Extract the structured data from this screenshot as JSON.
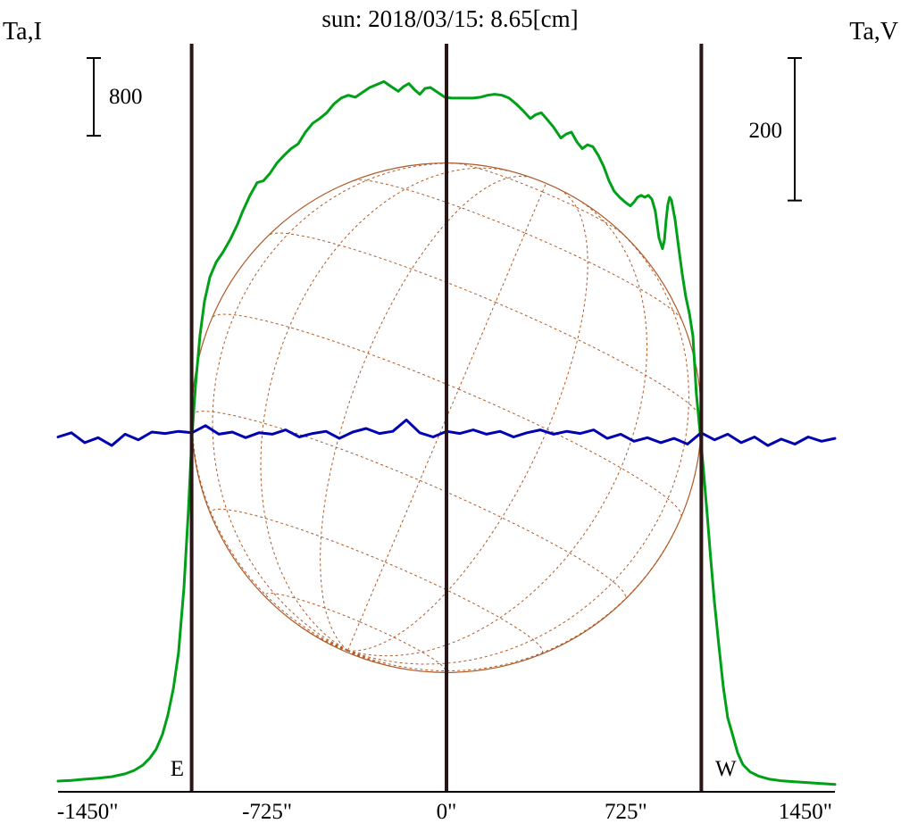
{
  "chart_data": {
    "type": "line",
    "title": "sun: 2018/03/15: 8.65[cm]",
    "title_color": "#000090",
    "x_unit": "arcsec",
    "xlim": [
      -1570,
      1570
    ],
    "x_ticks": [
      {
        "value": -1450,
        "label": "-1450\""
      },
      {
        "value": -725,
        "label": "-725\""
      },
      {
        "value": 0,
        "label": "0\""
      },
      {
        "value": 725,
        "label": "725\""
      },
      {
        "value": 1450,
        "label": "1450\""
      }
    ],
    "left_axis": {
      "label": "Ta,I",
      "ylim": [
        0,
        7700
      ],
      "scalebar": {
        "value": 800,
        "label": "800"
      }
    },
    "right_axis": {
      "label": "Ta,V",
      "ylim": [
        -500,
        550
      ],
      "scalebar": {
        "value": 200,
        "label": "200"
      }
    },
    "limb_markers": {
      "east": {
        "label": "E",
        "x_arcsec": -1030
      },
      "center_x_arcsec": 0,
      "west": {
        "label": "W",
        "x_arcsec": 1030
      },
      "line_color": "#2a1616"
    },
    "solar_disk": {
      "center_x_arcsec": 0,
      "radius_arcsec": 1030,
      "grid_step_deg": 22.5,
      "axis_tilt_deg": -23,
      "b_angle_deg": -7,
      "color": "#b05a28"
    },
    "series": [
      {
        "name": "Ta,I",
        "axis": "left",
        "color": "#00a018",
        "width": 3,
        "points": [
          [
            -1570,
            110
          ],
          [
            -1516,
            118
          ],
          [
            -1462,
            130
          ],
          [
            -1408,
            140
          ],
          [
            -1353,
            155
          ],
          [
            -1299,
            185
          ],
          [
            -1263,
            220
          ],
          [
            -1227,
            275
          ],
          [
            -1198,
            350
          ],
          [
            -1173,
            440
          ],
          [
            -1148,
            590
          ],
          [
            -1126,
            790
          ],
          [
            -1104,
            1060
          ],
          [
            -1083,
            1430
          ],
          [
            -1061,
            2100
          ],
          [
            -1043,
            2900
          ],
          [
            -1029,
            3650
          ],
          [
            -1014,
            4200
          ],
          [
            -996,
            4700
          ],
          [
            -978,
            5050
          ],
          [
            -956,
            5300
          ],
          [
            -931,
            5450
          ],
          [
            -902,
            5560
          ],
          [
            -873,
            5690
          ],
          [
            -845,
            5840
          ],
          [
            -823,
            5980
          ],
          [
            -794,
            6140
          ],
          [
            -765,
            6270
          ],
          [
            -740,
            6290
          ],
          [
            -715,
            6360
          ],
          [
            -686,
            6470
          ],
          [
            -657,
            6550
          ],
          [
            -628,
            6620
          ],
          [
            -599,
            6670
          ],
          [
            -570,
            6790
          ],
          [
            -541,
            6880
          ],
          [
            -513,
            6930
          ],
          [
            -484,
            6990
          ],
          [
            -455,
            7080
          ],
          [
            -426,
            7140
          ],
          [
            -397,
            7170
          ],
          [
            -368,
            7150
          ],
          [
            -339,
            7200
          ],
          [
            -310,
            7250
          ],
          [
            -282,
            7280
          ],
          [
            -253,
            7310
          ],
          [
            -224,
            7260
          ],
          [
            -195,
            7210
          ],
          [
            -173,
            7260
          ],
          [
            -152,
            7290
          ],
          [
            -130,
            7230
          ],
          [
            -108,
            7180
          ],
          [
            -87,
            7240
          ],
          [
            -65,
            7250
          ],
          [
            -36,
            7200
          ],
          [
            -7,
            7150
          ],
          [
            22,
            7140
          ],
          [
            51,
            7140
          ],
          [
            79,
            7140
          ],
          [
            108,
            7140
          ],
          [
            137,
            7150
          ],
          [
            166,
            7170
          ],
          [
            195,
            7180
          ],
          [
            224,
            7170
          ],
          [
            253,
            7140
          ],
          [
            282,
            7080
          ],
          [
            310,
            7010
          ],
          [
            339,
            6930
          ],
          [
            361,
            6970
          ],
          [
            383,
            6990
          ],
          [
            404,
            6930
          ],
          [
            433,
            6840
          ],
          [
            462,
            6730
          ],
          [
            484,
            6770
          ],
          [
            505,
            6790
          ],
          [
            527,
            6690
          ],
          [
            549,
            6620
          ],
          [
            570,
            6660
          ],
          [
            592,
            6640
          ],
          [
            614,
            6550
          ],
          [
            635,
            6440
          ],
          [
            657,
            6290
          ],
          [
            678,
            6180
          ],
          [
            700,
            6120
          ],
          [
            722,
            6070
          ],
          [
            743,
            6030
          ],
          [
            758,
            6070
          ],
          [
            772,
            6120
          ],
          [
            787,
            6140
          ],
          [
            801,
            6120
          ],
          [
            816,
            6140
          ],
          [
            830,
            6100
          ],
          [
            844,
            5980
          ],
          [
            859,
            5700
          ],
          [
            873,
            5590
          ],
          [
            881,
            5680
          ],
          [
            888,
            5890
          ],
          [
            895,
            6050
          ],
          [
            902,
            6120
          ],
          [
            909,
            6090
          ],
          [
            924,
            5890
          ],
          [
            938,
            5610
          ],
          [
            953,
            5330
          ],
          [
            967,
            5100
          ],
          [
            982,
            4920
          ],
          [
            996,
            4690
          ],
          [
            1010,
            4100
          ],
          [
            1025,
            3700
          ],
          [
            1039,
            3300
          ],
          [
            1054,
            2850
          ],
          [
            1068,
            2400
          ],
          [
            1083,
            1950
          ],
          [
            1101,
            1500
          ],
          [
            1119,
            1080
          ],
          [
            1137,
            760
          ],
          [
            1155,
            600
          ],
          [
            1177,
            400
          ],
          [
            1198,
            280
          ],
          [
            1227,
            205
          ],
          [
            1263,
            160
          ],
          [
            1306,
            130
          ],
          [
            1357,
            112
          ],
          [
            1408,
            103
          ],
          [
            1462,
            95
          ],
          [
            1516,
            85
          ],
          [
            1570,
            75
          ]
        ]
      },
      {
        "name": "Ta,V",
        "axis": "right",
        "color": "#0000b0",
        "width": 3,
        "points": [
          [
            -1570,
            -2
          ],
          [
            -1516,
            4
          ],
          [
            -1462,
            -10
          ],
          [
            -1408,
            -3
          ],
          [
            -1353,
            -14
          ],
          [
            -1299,
            2
          ],
          [
            -1245,
            -6
          ],
          [
            -1191,
            5
          ],
          [
            -1137,
            3
          ],
          [
            -1083,
            6
          ],
          [
            -1029,
            4
          ],
          [
            -974,
            14
          ],
          [
            -920,
            2
          ],
          [
            -866,
            5
          ],
          [
            -812,
            -3
          ],
          [
            -758,
            4
          ],
          [
            -704,
            2
          ],
          [
            -650,
            8
          ],
          [
            -595,
            -2
          ],
          [
            -541,
            3
          ],
          [
            -487,
            6
          ],
          [
            -433,
            -4
          ],
          [
            -379,
            5
          ],
          [
            -325,
            10
          ],
          [
            -271,
            3
          ],
          [
            -217,
            6
          ],
          [
            -162,
            22
          ],
          [
            -108,
            4
          ],
          [
            -54,
            -2
          ],
          [
            0,
            6
          ],
          [
            54,
            3
          ],
          [
            108,
            8
          ],
          [
            162,
            2
          ],
          [
            217,
            6
          ],
          [
            271,
            -2
          ],
          [
            325,
            4
          ],
          [
            379,
            8
          ],
          [
            433,
            2
          ],
          [
            487,
            6
          ],
          [
            541,
            3
          ],
          [
            595,
            8
          ],
          [
            650,
            -4
          ],
          [
            704,
            2
          ],
          [
            758,
            -8
          ],
          [
            812,
            -3
          ],
          [
            866,
            -10
          ],
          [
            920,
            -4
          ],
          [
            974,
            -12
          ],
          [
            1029,
            4
          ],
          [
            1083,
            -6
          ],
          [
            1137,
            2
          ],
          [
            1191,
            -10
          ],
          [
            1245,
            -2
          ],
          [
            1299,
            -14
          ],
          [
            1353,
            -5
          ],
          [
            1408,
            -12
          ],
          [
            1462,
            -2
          ],
          [
            1516,
            -8
          ],
          [
            1570,
            -4
          ]
        ]
      }
    ]
  }
}
